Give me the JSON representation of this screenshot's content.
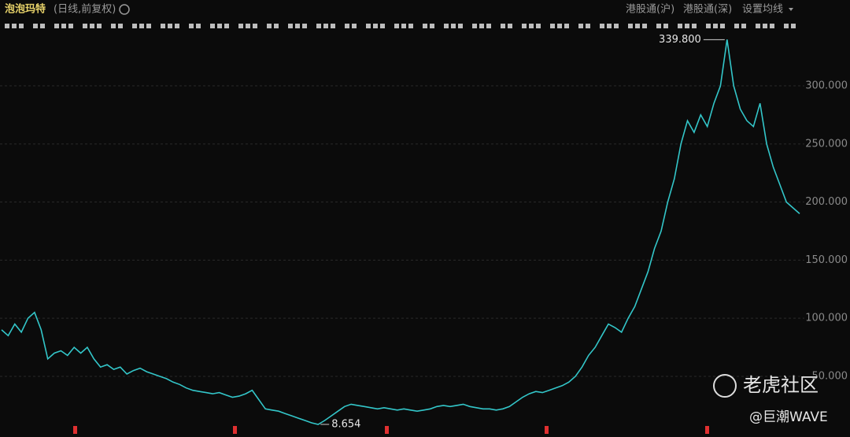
{
  "header": {
    "title": "泡泡玛特",
    "subtitle": "(日线,前复权)",
    "buttons": [
      "港股通(沪)",
      "港股通(深)",
      "设置均线"
    ]
  },
  "chart_data": {
    "type": "line",
    "color": "#33c6c9",
    "grid": true,
    "values": [
      90,
      85,
      95,
      88,
      100,
      105,
      90,
      65,
      70,
      72,
      68,
      75,
      70,
      75,
      65,
      58,
      60,
      56,
      58,
      52,
      55,
      57,
      54,
      52,
      50,
      48,
      45,
      43,
      40,
      38,
      37,
      36,
      35,
      36,
      34,
      32,
      33,
      35,
      38,
      30,
      22,
      21,
      20,
      18,
      16,
      14,
      12,
      10,
      8.654,
      12,
      16,
      20,
      24,
      26,
      25,
      24,
      23,
      22,
      23,
      22,
      21,
      22,
      21,
      20,
      21,
      22,
      24,
      25,
      24,
      25,
      26,
      24,
      23,
      22,
      22,
      21,
      22,
      24,
      28,
      32,
      35,
      37,
      36,
      38,
      40,
      42,
      45,
      50,
      58,
      68,
      75,
      85,
      95,
      92,
      88,
      100,
      110,
      125,
      140,
      160,
      175,
      200,
      220,
      250,
      270,
      260,
      275,
      265,
      285,
      300,
      339.8,
      300,
      280,
      270,
      265,
      285,
      250,
      230,
      215,
      200,
      195,
      190
    ],
    "ylim": [
      -2.2,
      343.4
    ],
    "yticks": [
      {
        "value": 50,
        "label": "50.000"
      },
      {
        "value": 100,
        "label": "100.000"
      },
      {
        "value": 150,
        "label": "150.000"
      },
      {
        "value": 200,
        "label": "200.000"
      },
      {
        "value": 250,
        "label": "250.000"
      },
      {
        "value": 300,
        "label": "300.000"
      }
    ],
    "annotations": [
      {
        "value": 339.8,
        "text": "339.800"
      },
      {
        "value": 8.654,
        "text": "8.654"
      }
    ]
  },
  "watermark": {
    "brand": "老虎社区",
    "author": "@巨潮WAVE"
  }
}
